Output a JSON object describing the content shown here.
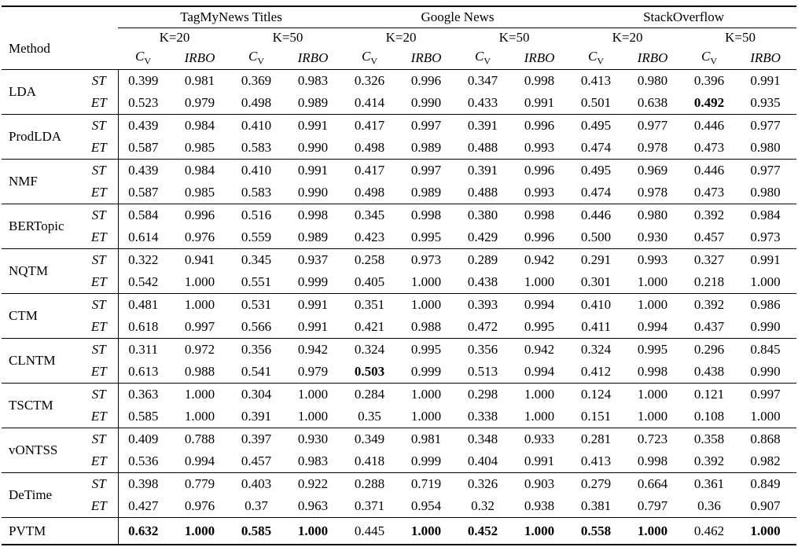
{
  "table": {
    "method_header": "Method",
    "groups": [
      "TagMyNews Titles",
      "Google News",
      "StackOverflow"
    ],
    "k_labels": [
      "K=20",
      "K=50"
    ],
    "metrics": {
      "cv_base": "C",
      "cv_sub": "V",
      "irbo": "IRBO"
    },
    "row_type_labels": [
      "ST",
      "ET"
    ],
    "methods": [
      {
        "name": "LDA",
        "rows": [
          {
            "type": "ST",
            "values": [
              "0.399",
              "0.981",
              "0.369",
              "0.983",
              "0.326",
              "0.996",
              "0.347",
              "0.998",
              "0.413",
              "0.980",
              "0.396",
              "0.991"
            ],
            "bold": []
          },
          {
            "type": "ET",
            "values": [
              "0.523",
              "0.979",
              "0.498",
              "0.989",
              "0.414",
              "0.990",
              "0.433",
              "0.991",
              "0.501",
              "0.638",
              "0.492",
              "0.935"
            ],
            "bold": [
              10
            ]
          }
        ]
      },
      {
        "name": "ProdLDA",
        "rows": [
          {
            "type": "ST",
            "values": [
              "0.439",
              "0.984",
              "0.410",
              "0.991",
              "0.417",
              "0.997",
              "0.391",
              "0.996",
              "0.495",
              "0.977",
              "0.446",
              "0.977"
            ],
            "bold": []
          },
          {
            "type": "ET",
            "values": [
              "0.587",
              "0.985",
              "0.583",
              "0.990",
              "0.498",
              "0.989",
              "0.488",
              "0.993",
              "0.474",
              "0.978",
              "0.473",
              "0.980"
            ],
            "bold": []
          }
        ]
      },
      {
        "name": "NMF",
        "rows": [
          {
            "type": "ST",
            "values": [
              "0.439",
              "0.984",
              "0.410",
              "0.991",
              "0.417",
              "0.997",
              "0.391",
              "0.996",
              "0.495",
              "0.969",
              "0.446",
              "0.977"
            ],
            "bold": []
          },
          {
            "type": "ET",
            "values": [
              "0.587",
              "0.985",
              "0.583",
              "0.990",
              "0.498",
              "0.989",
              "0.488",
              "0.993",
              "0.474",
              "0.978",
              "0.473",
              "0.980"
            ],
            "bold": []
          }
        ]
      },
      {
        "name": "BERTopic",
        "rows": [
          {
            "type": "ST",
            "values": [
              "0.584",
              "0.996",
              "0.516",
              "0.998",
              "0.345",
              "0.998",
              "0.380",
              "0.998",
              "0.446",
              "0.980",
              "0.392",
              "0.984"
            ],
            "bold": []
          },
          {
            "type": "ET",
            "values": [
              "0.614",
              "0.976",
              "0.559",
              "0.989",
              "0.423",
              "0.995",
              "0.429",
              "0.996",
              "0.500",
              "0.930",
              "0.457",
              "0.973"
            ],
            "bold": []
          }
        ]
      },
      {
        "name": "NQTM",
        "rows": [
          {
            "type": "ST",
            "values": [
              "0.322",
              "0.941",
              "0.345",
              "0.937",
              "0.258",
              "0.973",
              "0.289",
              "0.942",
              "0.291",
              "0.993",
              "0.327",
              "0.991"
            ],
            "bold": []
          },
          {
            "type": "ET",
            "values": [
              "0.542",
              "1.000",
              "0.551",
              "0.999",
              "0.405",
              "1.000",
              "0.438",
              "1.000",
              "0.301",
              "1.000",
              "0.218",
              "1.000"
            ],
            "bold": []
          }
        ]
      },
      {
        "name": "CTM",
        "rows": [
          {
            "type": "ST",
            "values": [
              "0.481",
              "1.000",
              "0.531",
              "0.991",
              "0.351",
              "1.000",
              "0.393",
              "0.994",
              "0.410",
              "1.000",
              "0.392",
              "0.986"
            ],
            "bold": []
          },
          {
            "type": "ET",
            "values": [
              "0.618",
              "0.997",
              "0.566",
              "0.991",
              "0.421",
              "0.988",
              "0.472",
              "0.995",
              "0.411",
              "0.994",
              "0.437",
              "0.990"
            ],
            "bold": []
          }
        ]
      },
      {
        "name": "CLNTM",
        "rows": [
          {
            "type": "ST",
            "values": [
              "0.311",
              "0.972",
              "0.356",
              "0.942",
              "0.324",
              "0.995",
              "0.356",
              "0.942",
              "0.324",
              "0.995",
              "0.296",
              "0.845"
            ],
            "bold": []
          },
          {
            "type": "ET",
            "values": [
              "0.613",
              "0.988",
              "0.541",
              "0.979",
              "0.503",
              "0.999",
              "0.513",
              "0.994",
              "0.412",
              "0.998",
              "0.438",
              "0.990"
            ],
            "bold": [
              4
            ]
          }
        ]
      },
      {
        "name": "TSCTM",
        "rows": [
          {
            "type": "ST",
            "values": [
              "0.363",
              "1.000",
              "0.304",
              "1.000",
              "0.284",
              "1.000",
              "0.298",
              "1.000",
              "0.124",
              "1.000",
              "0.121",
              "0.997"
            ],
            "bold": []
          },
          {
            "type": "ET",
            "values": [
              "0.585",
              "1.000",
              "0.391",
              "1.000",
              "0.35",
              "1.000",
              "0.338",
              "1.000",
              "0.151",
              "1.000",
              "0.108",
              "1.000"
            ],
            "bold": []
          }
        ]
      },
      {
        "name": "vONTSS",
        "rows": [
          {
            "type": "ST",
            "values": [
              "0.409",
              "0.788",
              "0.397",
              "0.930",
              "0.349",
              "0.981",
              "0.348",
              "0.933",
              "0.281",
              "0.723",
              "0.358",
              "0.868"
            ],
            "bold": []
          },
          {
            "type": "ET",
            "values": [
              "0.536",
              "0.994",
              "0.457",
              "0.983",
              "0.418",
              "0.999",
              "0.404",
              "0.991",
              "0.413",
              "0.998",
              "0.392",
              "0.982"
            ],
            "bold": []
          }
        ]
      },
      {
        "name": "DeTime",
        "rows": [
          {
            "type": "ST",
            "values": [
              "0.398",
              "0.779",
              "0.403",
              "0.922",
              "0.288",
              "0.719",
              "0.326",
              "0.903",
              "0.279",
              "0.664",
              "0.361",
              "0.849"
            ],
            "bold": []
          },
          {
            "type": "ET",
            "values": [
              "0.427",
              "0.976",
              "0.37",
              "0.963",
              "0.371",
              "0.954",
              "0.32",
              "0.938",
              "0.381",
              "0.797",
              "0.36",
              "0.907"
            ],
            "bold": []
          }
        ]
      },
      {
        "name": "PVTM",
        "rows": [
          {
            "type": "",
            "values": [
              "0.632",
              "1.000",
              "0.585",
              "1.000",
              "0.445",
              "1.000",
              "0.452",
              "1.000",
              "0.558",
              "1.000",
              "0.462",
              "1.000"
            ],
            "bold": [
              0,
              1,
              2,
              3,
              5,
              6,
              7,
              8,
              9,
              11
            ]
          }
        ]
      }
    ]
  }
}
